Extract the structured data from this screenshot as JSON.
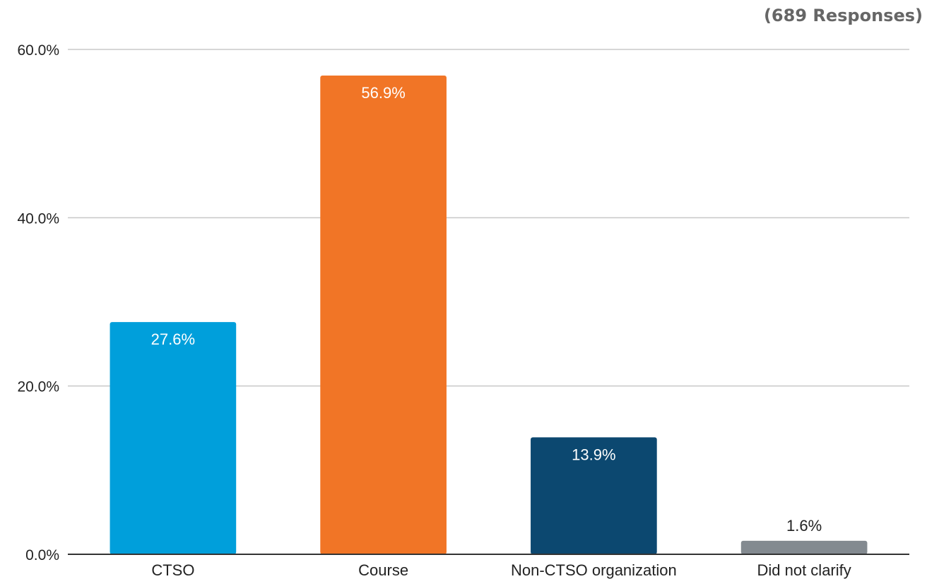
{
  "header": {
    "responses": "(689 Responses)"
  },
  "chart_data": {
    "type": "bar",
    "categories": [
      "CTSO",
      "Course",
      "Non-CTSO organization",
      "Did not clarify"
    ],
    "values": [
      27.6,
      56.9,
      13.9,
      1.6
    ],
    "value_labels": [
      "27.6%",
      "56.9%",
      "13.9%",
      "1.6%"
    ],
    "colors": [
      "#009fdb",
      "#f17526",
      "#0c4870",
      "#838a90"
    ],
    "label_colors": [
      "#ffffff",
      "#ffffff",
      "#ffffff",
      "#222222"
    ],
    "yticks": [
      0,
      20,
      40,
      60
    ],
    "ytick_labels": [
      "0.0%",
      "20.0%",
      "40.0%",
      "60.0%"
    ],
    "ylim": [
      0,
      60
    ],
    "grid": true,
    "title": "",
    "xlabel": "",
    "ylabel": ""
  }
}
